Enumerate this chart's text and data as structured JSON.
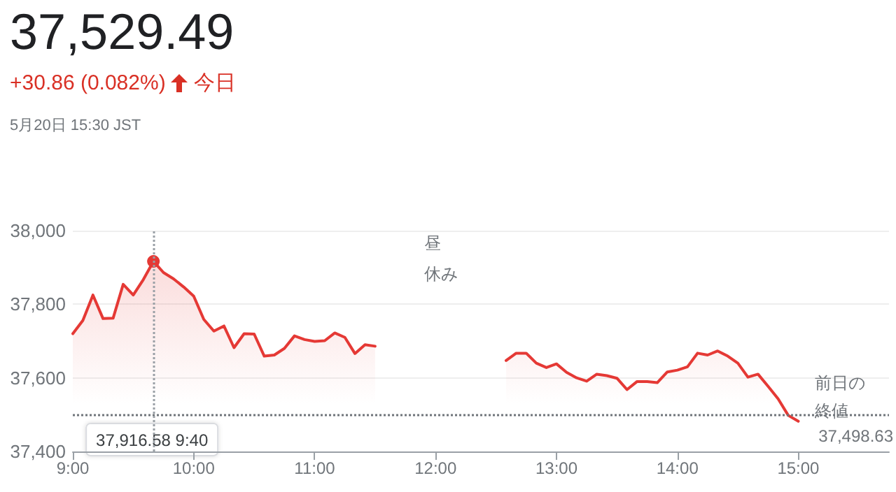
{
  "chart_data": {
    "type": "area",
    "title": "37,529.49",
    "subtitle": "+30.86 (0.082%)",
    "annotations": [
      "今日",
      "5月20日 15:30 JST",
      "昼",
      "休み",
      "37,916.58 9:40",
      "37,498.63"
    ],
    "x": [
      9,
      9.0833,
      9.1667,
      9.25,
      9.3333,
      9.4167,
      9.5,
      9.5833,
      9.6667,
      9.75,
      9.8333,
      9.9167,
      10,
      10.0833,
      10.1667,
      10.25,
      10.3333,
      10.4167,
      10.5,
      10.5833,
      10.6667,
      10.75,
      10.8333,
      10.9167,
      11,
      11.0833,
      11.1667,
      11.25,
      11.3333,
      11.4167,
      11.5,
      12,
      12.5833,
      12.6667,
      12.75,
      12.8333,
      12.9167,
      13,
      13.0833,
      13.1667,
      13.25,
      13.3333,
      13.4167,
      13.5,
      13.5833,
      13.6667,
      13.75,
      13.8333,
      13.9167,
      14,
      14.0833,
      14.1667,
      14.25,
      14.3333,
      14.4167,
      14.5,
      14.5833,
      14.6667,
      14.75,
      14.8333,
      14.9167,
      15
    ],
    "series": [
      {
        "color": "#e53935",
        "values": [
          37720,
          37756,
          37825,
          37761,
          37762,
          37854,
          37825,
          37867,
          37916.58,
          37886,
          37869,
          37847,
          37822,
          37759,
          37727,
          37741,
          37682,
          37720,
          37719,
          37659,
          37662,
          37680,
          37714,
          37704,
          37699,
          37701,
          37722,
          37710,
          37666,
          37690,
          37686,
          null,
          37647,
          37667,
          37667,
          37640,
          37628,
          37638,
          37615,
          37600,
          37591,
          37610,
          37606,
          37599,
          37568,
          37590,
          37590,
          37587,
          37616,
          37621,
          37630,
          37667,
          37662,
          37673,
          37659,
          37640,
          37602,
          37610,
          37577,
          37543,
          37498,
          37482
        ]
      }
    ],
    "xlim": [
      9,
      15.75
    ],
    "xticks": [
      {
        "value": 9,
        "label": "9:00"
      },
      {
        "value": 10,
        "label": "10:00"
      },
      {
        "value": 11,
        "label": "11:00"
      },
      {
        "value": 12,
        "label": "12:00"
      },
      {
        "value": 13,
        "label": "13:00"
      },
      {
        "value": 14,
        "label": "14:00"
      },
      {
        "value": 15,
        "label": "15:00"
      }
    ],
    "ylim": [
      37400,
      38000
    ],
    "yticks": [
      {
        "value": 37400,
        "label": "37,400"
      },
      {
        "value": 37600,
        "label": "37,600"
      },
      {
        "value": 37800,
        "label": "37,800"
      },
      {
        "value": 38000,
        "label": "38,000"
      }
    ],
    "ref_lines": [
      {
        "axis": "y",
        "value": 37498.63,
        "label": "前日の終値",
        "color": "#70757a",
        "line_style": "dotted"
      },
      {
        "axis": "x",
        "value": 9.6667,
        "color": "#9aa0a6",
        "line_style": "dotted"
      }
    ],
    "grid": "y",
    "marker": "none",
    "line_style": "solid"
  }
}
